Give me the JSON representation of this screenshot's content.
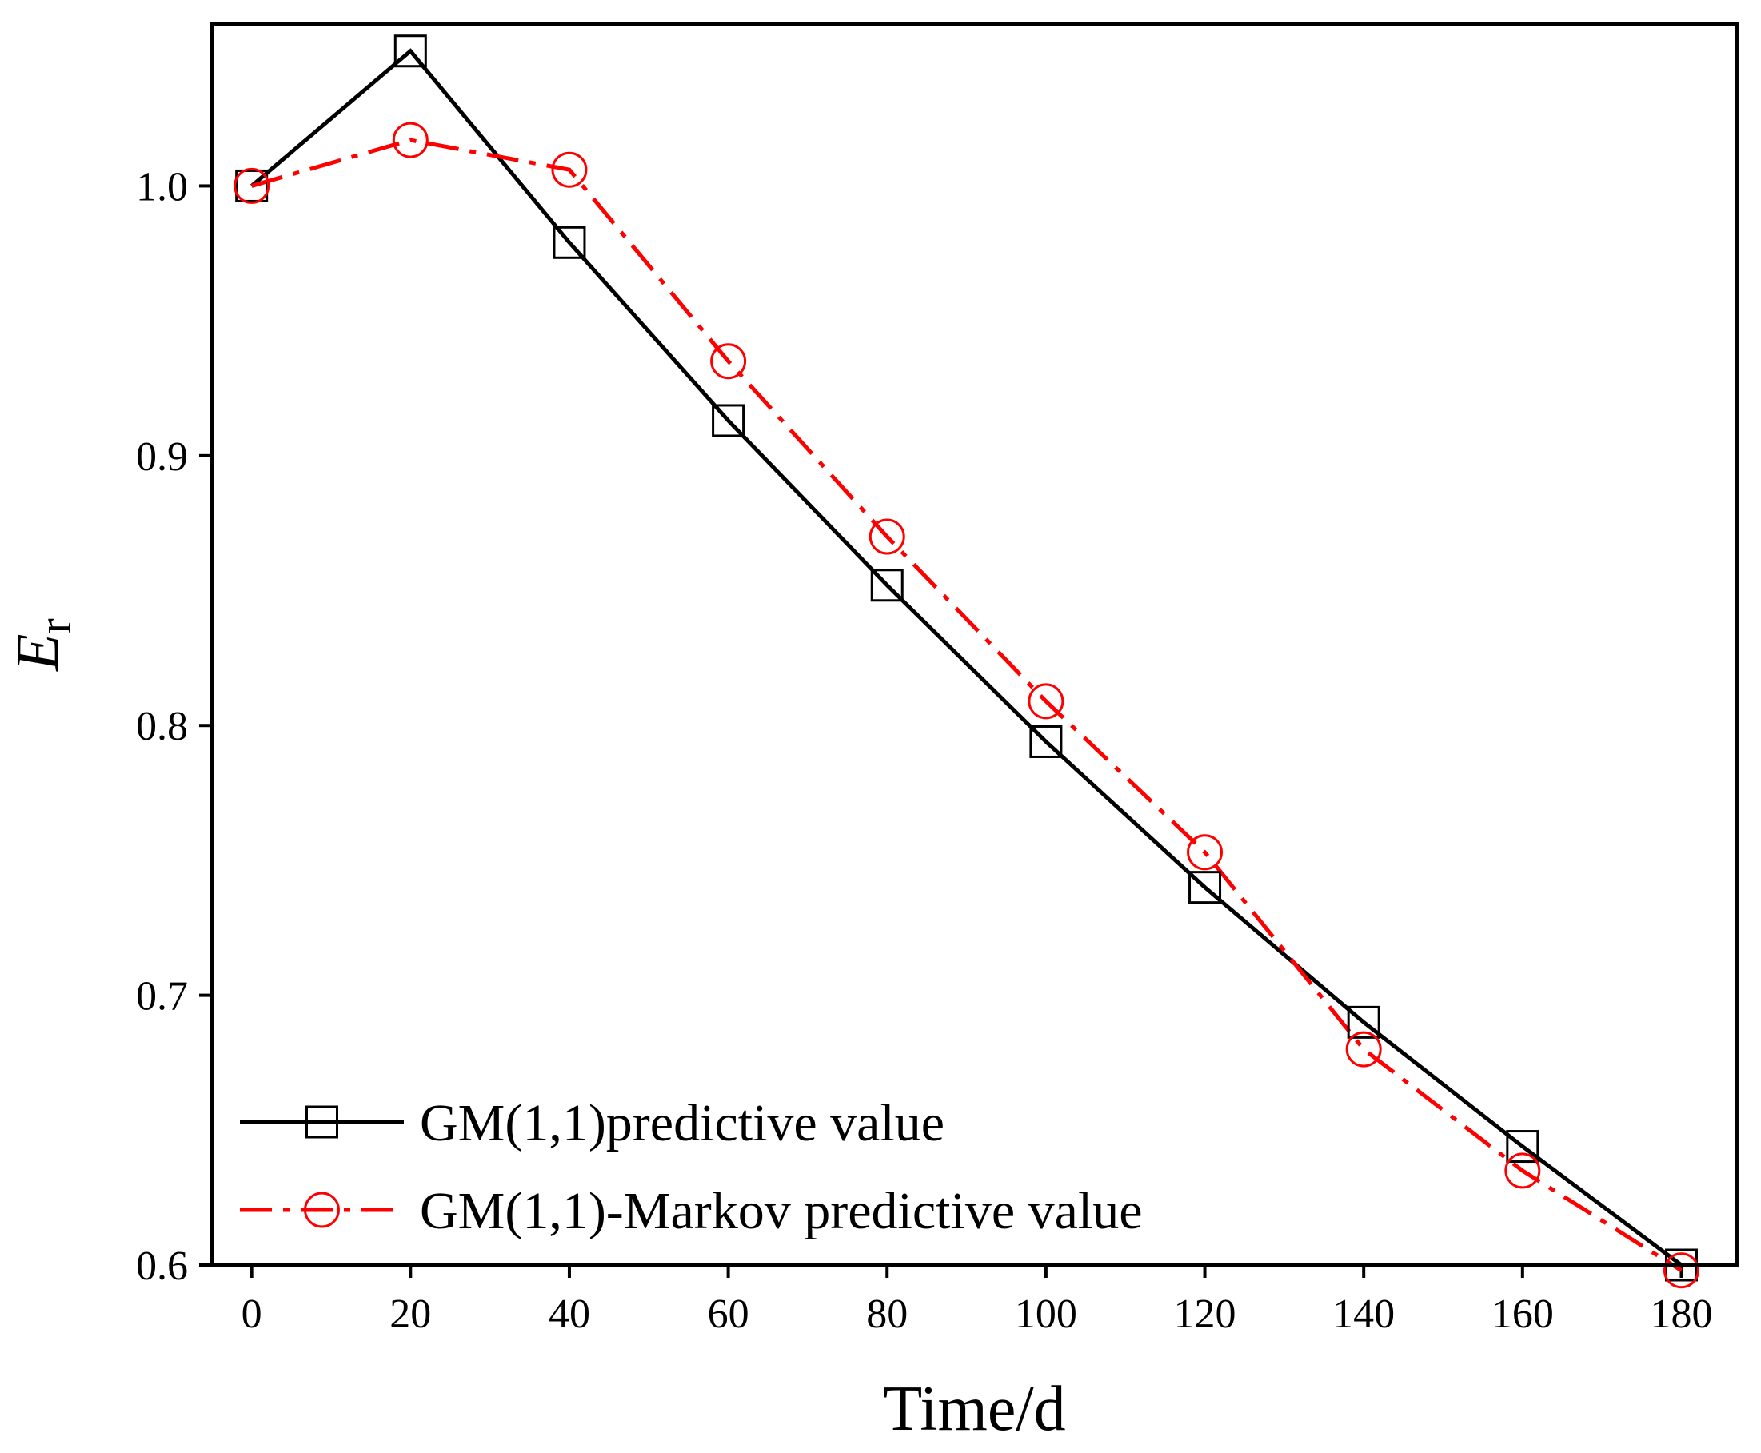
{
  "chart_data": {
    "type": "line",
    "title": "",
    "xlabel": "Time/d",
    "ylabel_main": "E",
    "ylabel_sub": "r",
    "x": [
      0,
      20,
      40,
      60,
      80,
      100,
      120,
      140,
      160,
      180
    ],
    "xlim": [
      -5,
      187
    ],
    "ylim": [
      0.6,
      1.06
    ],
    "xticks": [
      0,
      20,
      40,
      60,
      80,
      100,
      120,
      140,
      160,
      180
    ],
    "yticks": [
      0.6,
      0.7,
      0.8,
      0.9,
      1.0
    ],
    "xtick_labels": [
      "0",
      "20",
      "40",
      "60",
      "80",
      "100",
      "120",
      "140",
      "160",
      "180"
    ],
    "ytick_labels": [
      "0.6",
      "0.7",
      "0.8",
      "0.9",
      "1.0"
    ],
    "grid": false,
    "legend_position": "bottom-left",
    "series": [
      {
        "name": "GM(1,1)predictive value",
        "values": [
          1.0,
          1.05,
          0.979,
          0.913,
          0.852,
          0.794,
          0.74,
          0.69,
          0.644,
          0.6
        ],
        "color": "#000000",
        "marker": "square",
        "line_style": "solid"
      },
      {
        "name": "GM(1,1)-Markov predictive value",
        "values": [
          1.0,
          1.017,
          1.006,
          0.935,
          0.87,
          0.809,
          0.753,
          0.68,
          0.635,
          0.598
        ],
        "color": "#ff0000",
        "marker": "circle",
        "line_style": "dash-dot"
      }
    ]
  }
}
